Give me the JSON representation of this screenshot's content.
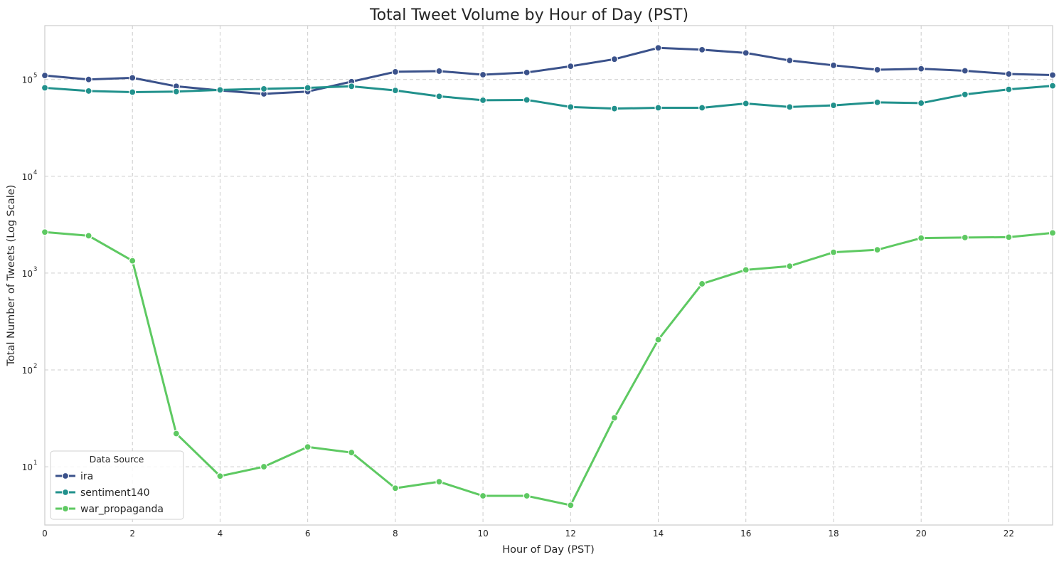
{
  "chart_data": {
    "type": "line",
    "title": "Total Tweet Volume by Hour of Day (PST)",
    "xlabel": "Hour of Day (PST)",
    "ylabel": "Total Number of Tweets (Log Scale)",
    "x": [
      0,
      1,
      2,
      3,
      4,
      5,
      6,
      7,
      8,
      9,
      10,
      11,
      12,
      13,
      14,
      15,
      16,
      17,
      18,
      19,
      20,
      21,
      22,
      23
    ],
    "xlim": [
      0,
      23
    ],
    "x_ticks": [
      0,
      2,
      4,
      6,
      8,
      10,
      12,
      14,
      16,
      18,
      20,
      22
    ],
    "yscale": "log",
    "ylim": [
      2.5,
      360000
    ],
    "y_ticks": [
      {
        "value": 10,
        "base": "10",
        "exp": "1"
      },
      {
        "value": 100,
        "base": "10",
        "exp": "2"
      },
      {
        "value": 1000,
        "base": "10",
        "exp": "3"
      },
      {
        "value": 10000,
        "base": "10",
        "exp": "4"
      },
      {
        "value": 100000,
        "base": "10",
        "exp": "5"
      }
    ],
    "grid": true,
    "legend": {
      "title": "Data Source",
      "placement": "bottom-left"
    },
    "series": [
      {
        "name": "ira",
        "color": "#3b528b",
        "values": [
          110000,
          100000,
          104000,
          85000,
          77000,
          71000,
          75000,
          95000,
          120000,
          122000,
          112000,
          118000,
          137000,
          162000,
          212000,
          203000,
          188000,
          157000,
          140000,
          126000,
          129000,
          123000,
          114000,
          111000
        ]
      },
      {
        "name": "sentiment140",
        "color": "#21918c",
        "values": [
          82000,
          76000,
          74000,
          75000,
          78000,
          80000,
          82000,
          85000,
          77000,
          67000,
          61000,
          61500,
          52000,
          50000,
          51000,
          51000,
          56500,
          52000,
          54000,
          58000,
          57000,
          70000,
          79000,
          86000
        ]
      },
      {
        "name": "war_propaganda",
        "color": "#5ec962",
        "values": [
          2650,
          2430,
          1340,
          22,
          8,
          10,
          16,
          14,
          6,
          7,
          5,
          5,
          4,
          32,
          205,
          775,
          1080,
          1180,
          1640,
          1740,
          2300,
          2330,
          2350,
          2600
        ]
      }
    ]
  }
}
